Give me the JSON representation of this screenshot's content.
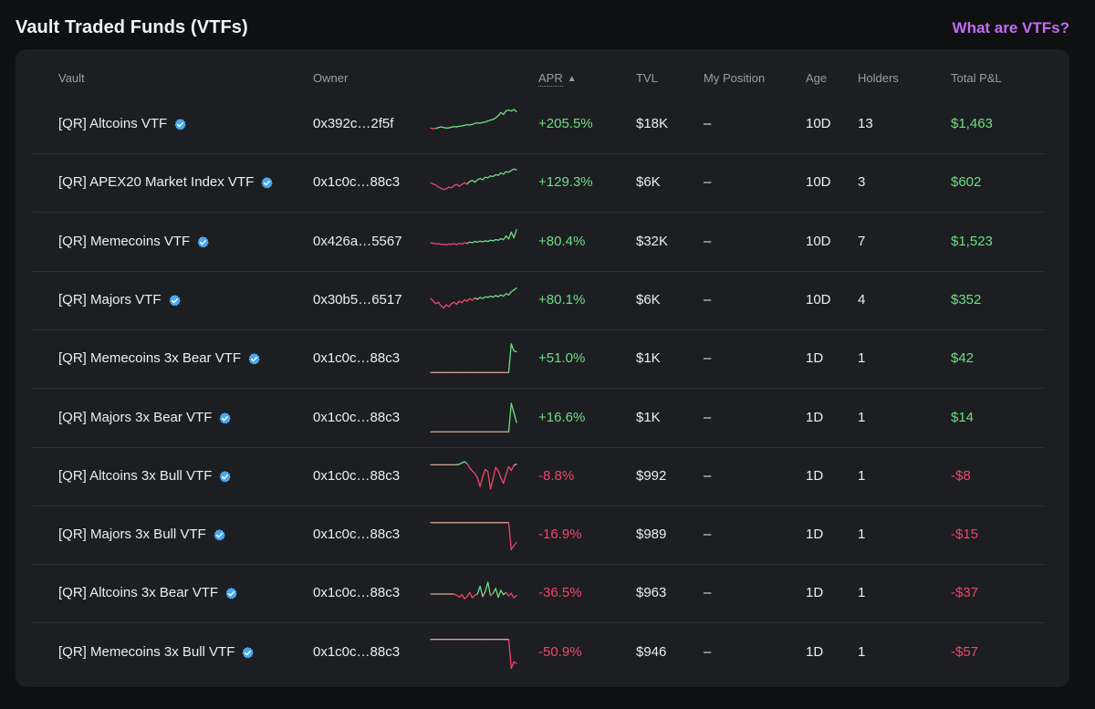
{
  "page": {
    "title": "Vault Traded Funds (VTFs)",
    "help_link": "What are VTFs?"
  },
  "colors": {
    "positive": "#6fde86",
    "negative": "#f0466c",
    "accent": "#c36cf2",
    "verified_badge": "#4aa8f0"
  },
  "table": {
    "headers": {
      "vault": "Vault",
      "owner": "Owner",
      "apr": "APR",
      "apr_sort_icon": "▲",
      "tvl": "TVL",
      "my_position": "My Position",
      "age": "Age",
      "holders": "Holders",
      "total_pnl": "Total P&L"
    },
    "rows": [
      {
        "vault": "[QR] Altcoins VTF",
        "owner": "0x392c…2f5f",
        "apr": "+205.5%",
        "tvl": "$18K",
        "my_position": "–",
        "age": "10D",
        "holders": "13",
        "pnl": "$1,463",
        "positive": true,
        "trend": [
          40,
          38,
          39,
          42,
          44,
          42,
          40,
          41,
          43,
          45,
          44,
          46,
          47,
          49,
          51,
          50,
          52,
          55,
          57,
          56,
          58,
          60,
          63,
          66,
          68,
          73,
          80,
          90,
          84,
          96,
          98,
          95,
          100,
          93
        ]
      },
      {
        "vault": "[QR] APEX20 Market Index VTF",
        "owner": "0x1c0c…88c3",
        "apr": "+129.3%",
        "tvl": "$6K",
        "my_position": "–",
        "age": "10D",
        "holders": "3",
        "pnl": "$602",
        "positive": true,
        "trend": [
          52,
          48,
          45,
          38,
          34,
          30,
          33,
          38,
          36,
          43,
          47,
          41,
          47,
          52,
          48,
          56,
          60,
          54,
          62,
          66,
          62,
          70,
          68,
          74,
          72,
          78,
          76,
          84,
          80,
          88,
          86,
          92,
          96,
          94
        ]
      },
      {
        "vault": "[QR] Memecoins VTF",
        "owner": "0x426a…5567",
        "apr": "+80.4%",
        "tvl": "$32K",
        "my_position": "–",
        "age": "10D",
        "holders": "7",
        "pnl": "$1,523",
        "positive": true,
        "trend": [
          50,
          48,
          46,
          47,
          44,
          45,
          43,
          46,
          45,
          47,
          44,
          48,
          46,
          50,
          48,
          52,
          50,
          54,
          52,
          55,
          53,
          56,
          54,
          58,
          56,
          60,
          58,
          63,
          60,
          72,
          62,
          84,
          66,
          92
        ]
      },
      {
        "vault": "[QR] Majors VTF",
        "owner": "0x30b5…6517",
        "apr": "+80.1%",
        "tvl": "$6K",
        "my_position": "–",
        "age": "10D",
        "holders": "4",
        "pnl": "$352",
        "positive": true,
        "trend": [
          58,
          50,
          42,
          46,
          35,
          28,
          38,
          32,
          42,
          46,
          40,
          50,
          45,
          54,
          50,
          58,
          53,
          60,
          56,
          62,
          58,
          64,
          62,
          66,
          63,
          68,
          64,
          70,
          66,
          74,
          70,
          80,
          86,
          92
        ]
      },
      {
        "vault": "[QR] Memecoins 3x Bear VTF",
        "owner": "0x1c0c…88c3",
        "apr": "+51.0%",
        "tvl": "$1K",
        "my_position": "–",
        "age": "1D",
        "holders": "1",
        "pnl": "$42",
        "positive": true,
        "trend": [
          8,
          8,
          8,
          8,
          8,
          8,
          8,
          8,
          8,
          8,
          8,
          8,
          8,
          8,
          8,
          8,
          8,
          8,
          8,
          8,
          8,
          8,
          8,
          8,
          8,
          8,
          8,
          8,
          8,
          8,
          8,
          100,
          78,
          75
        ]
      },
      {
        "vault": "[QR] Majors 3x Bear VTF",
        "owner": "0x1c0c…88c3",
        "apr": "+16.6%",
        "tvl": "$1K",
        "my_position": "–",
        "age": "1D",
        "holders": "1",
        "pnl": "$14",
        "positive": true,
        "trend": [
          8,
          8,
          8,
          8,
          8,
          8,
          8,
          8,
          8,
          8,
          8,
          8,
          8,
          8,
          8,
          8,
          8,
          8,
          8,
          8,
          8,
          8,
          8,
          8,
          8,
          8,
          8,
          8,
          8,
          8,
          8,
          100,
          70,
          38
        ]
      },
      {
        "vault": "[QR] Altcoins 3x Bull VTF",
        "owner": "0x1c0c…88c3",
        "apr": "-8.8%",
        "tvl": "$992",
        "my_position": "–",
        "age": "1D",
        "holders": "1",
        "pnl": "-$8",
        "positive": false,
        "trend": [
          90,
          90,
          90,
          90,
          90,
          90,
          90,
          90,
          90,
          90,
          90,
          92,
          96,
          100,
          94,
          80,
          70,
          62,
          48,
          20,
          52,
          75,
          68,
          12,
          45,
          82,
          70,
          48,
          30,
          60,
          84,
          72,
          88,
          92
        ]
      },
      {
        "vault": "[QR] Majors 3x Bull VTF",
        "owner": "0x1c0c…88c3",
        "apr": "-16.9%",
        "tvl": "$989",
        "my_position": "–",
        "age": "1D",
        "holders": "1",
        "pnl": "-$15",
        "positive": false,
        "trend": [
          92,
          92,
          92,
          92,
          92,
          92,
          92,
          92,
          92,
          92,
          92,
          92,
          92,
          92,
          92,
          92,
          92,
          92,
          92,
          92,
          92,
          92,
          92,
          92,
          92,
          92,
          92,
          92,
          92,
          92,
          92,
          5,
          18,
          28
        ]
      },
      {
        "vault": "[QR] Altcoins 3x Bear VTF",
        "owner": "0x1c0c…88c3",
        "apr": "-36.5%",
        "tvl": "$963",
        "my_position": "–",
        "age": "1D",
        "holders": "1",
        "pnl": "-$37",
        "positive": false,
        "trend": [
          50,
          50,
          50,
          50,
          50,
          50,
          50,
          50,
          50,
          50,
          46,
          40,
          48,
          35,
          42,
          55,
          38,
          46,
          50,
          75,
          42,
          58,
          88,
          45,
          52,
          68,
          40,
          62,
          48,
          55,
          44,
          52,
          38,
          45
        ]
      },
      {
        "vault": "[QR] Memecoins 3x Bull VTF",
        "owner": "0x1c0c…88c3",
        "apr": "-50.9%",
        "tvl": "$946",
        "my_position": "–",
        "age": "1D",
        "holders": "1",
        "pnl": "-$57",
        "positive": false,
        "trend": [
          95,
          95,
          95,
          95,
          95,
          95,
          95,
          95,
          95,
          95,
          95,
          95,
          95,
          95,
          95,
          95,
          95,
          95,
          95,
          95,
          95,
          95,
          95,
          95,
          95,
          95,
          95,
          95,
          95,
          95,
          95,
          2,
          22,
          18
        ]
      }
    ]
  }
}
